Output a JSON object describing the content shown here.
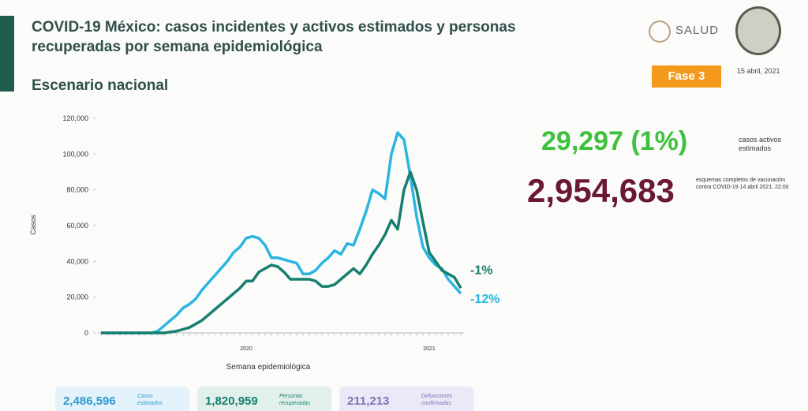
{
  "header": {
    "title": "COVID-19 México: casos incidentes y activos estimados y personas recuperadas por semana epidemiológica",
    "subtitle": "Escenario nacional",
    "logo": "SALUD",
    "phase": "Fase 3",
    "date": "15 abril, 2021"
  },
  "stats": {
    "active": "29,297 (1%)",
    "active_label": "casos activos estimados",
    "vaccinated": "2,954,683",
    "vaccinated_label": "esquemas completos de vacunación contra COVID-19 14 abril 2021, 22:00"
  },
  "boxes": [
    {
      "value": "2,486,596",
      "label": "Casos estimados"
    },
    {
      "value": "1,820,959",
      "label": "Personas recuperadas"
    },
    {
      "value": "211,213",
      "label": "Defunciones confirmadas"
    }
  ],
  "chart_data": {
    "type": "line",
    "y_label": "Casos",
    "x_label": "Semana epidemiológica",
    "categories": [
      null,
      null,
      null,
      null,
      null,
      null,
      null,
      null,
      null,
      null,
      null,
      null,
      null,
      null,
      null,
      null,
      null,
      null,
      null,
      null,
      null,
      null,
      null,
      "2020",
      null,
      null,
      null,
      null,
      null,
      null,
      null,
      null,
      null,
      null,
      null,
      null,
      null,
      null,
      null,
      null,
      null,
      null,
      null,
      null,
      null,
      null,
      null,
      null,
      null,
      null,
      null,
      null,
      "2021",
      null,
      null,
      null,
      null,
      null
    ],
    "ylim": [
      0,
      120000
    ],
    "yticks": [
      0,
      {
        "value": 20000,
        "label": "20,000"
      },
      {
        "value": 40000,
        "label": "40,000"
      },
      {
        "value": 60000,
        "label": "60,000"
      },
      {
        "value": 80000,
        "label": "80,000"
      },
      {
        "value": 100000,
        "label": "100,000"
      },
      {
        "value": 120000,
        "label": "120,000"
      }
    ],
    "series": [
      {
        "color": "#2bb5e0",
        "end_label": "-12%",
        "values": [
          0,
          0,
          0,
          0,
          0,
          0,
          0,
          0,
          0,
          1000,
          4000,
          7000,
          10000,
          14000,
          16000,
          19000,
          24000,
          28000,
          32000,
          36000,
          40000,
          45000,
          48000,
          53000,
          54000,
          53000,
          49000,
          42000,
          42000,
          41000,
          40000,
          39000,
          33000,
          33000,
          35000,
          39000,
          42000,
          46000,
          44000,
          50000,
          49000,
          58000,
          68000,
          80000,
          78000,
          75000,
          100000,
          112000,
          108000,
          88000,
          65000,
          48000,
          42000,
          38000,
          36000,
          30000,
          26000,
          22000
        ]
      },
      {
        "color": "#167f6f",
        "end_label": "-1%",
        "values": [
          0,
          0,
          0,
          0,
          0,
          0,
          0,
          0,
          0,
          0,
          0,
          500,
          1000,
          2000,
          3000,
          5000,
          7000,
          10000,
          13000,
          16000,
          19000,
          22000,
          25000,
          29000,
          29000,
          34000,
          36000,
          38000,
          37000,
          34000,
          30000,
          30000,
          30000,
          30000,
          29000,
          26000,
          26000,
          27000,
          30000,
          33000,
          36000,
          33000,
          38000,
          44000,
          49000,
          55000,
          63000,
          58000,
          80000,
          90000,
          80000,
          62000,
          45000,
          40000,
          35000,
          33000,
          31000,
          25000
        ]
      }
    ]
  }
}
